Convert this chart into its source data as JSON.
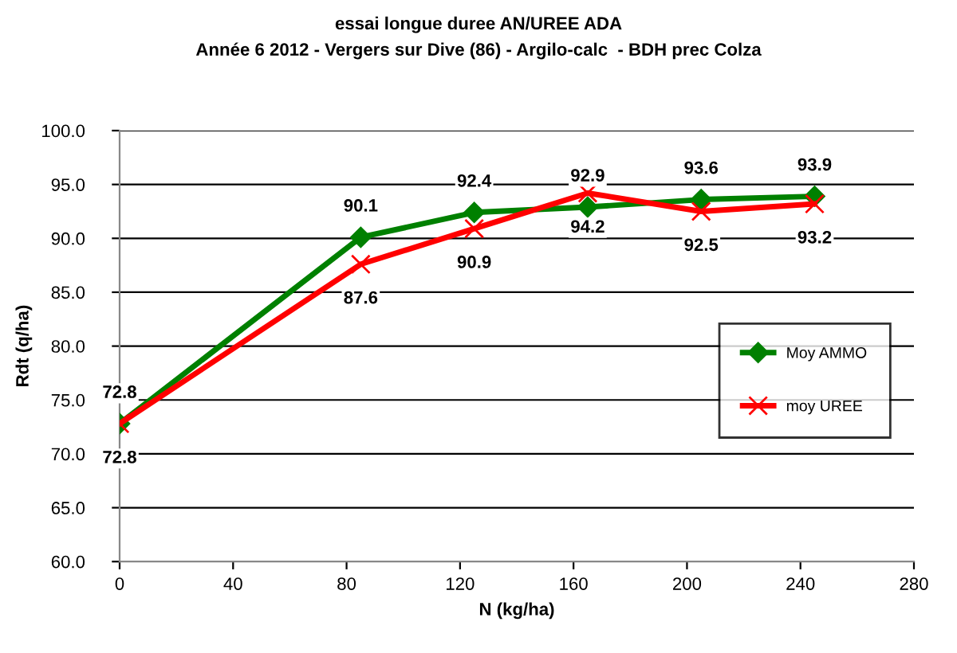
{
  "chart_data": {
    "type": "line",
    "title": "essai longue duree AN/UREE ADA",
    "subtitle": "Année 6 2012 - Vergers sur Dive (86) - Argilo-calc  - BDH prec Colza",
    "xlabel": "N (kg/ha)",
    "ylabel": "Rdt (q/ha)",
    "x": [
      0,
      85,
      125,
      165,
      205,
      245
    ],
    "series": [
      {
        "name": "Moy AMMO",
        "color": "#008000",
        "marker": "diamond",
        "values": [
          72.8,
          90.1,
          92.4,
          92.9,
          93.6,
          93.9
        ]
      },
      {
        "name": "moy UREE",
        "color": "#ff0000",
        "marker": "cross",
        "values": [
          72.8,
          87.6,
          90.9,
          94.2,
          92.5,
          93.2
        ]
      }
    ],
    "xlim": [
      0,
      280
    ],
    "xticks": [
      0,
      40,
      80,
      120,
      160,
      200,
      240,
      280
    ],
    "ylim": [
      60,
      100
    ],
    "yticks": [
      {
        "value": 60,
        "label": "60.0"
      },
      {
        "value": 65,
        "label": "65.0"
      },
      {
        "value": 70,
        "label": "70.0"
      },
      {
        "value": 75,
        "label": "75.0"
      },
      {
        "value": 80,
        "label": "80.0"
      },
      {
        "value": 85,
        "label": "85.0"
      },
      {
        "value": 90,
        "label": "90.0"
      },
      {
        "value": 95,
        "label": "95.0"
      },
      {
        "value": 100,
        "label": "100.0"
      }
    ],
    "grid": "y",
    "legend": "right",
    "data_labels": true,
    "line_style": "solid"
  }
}
